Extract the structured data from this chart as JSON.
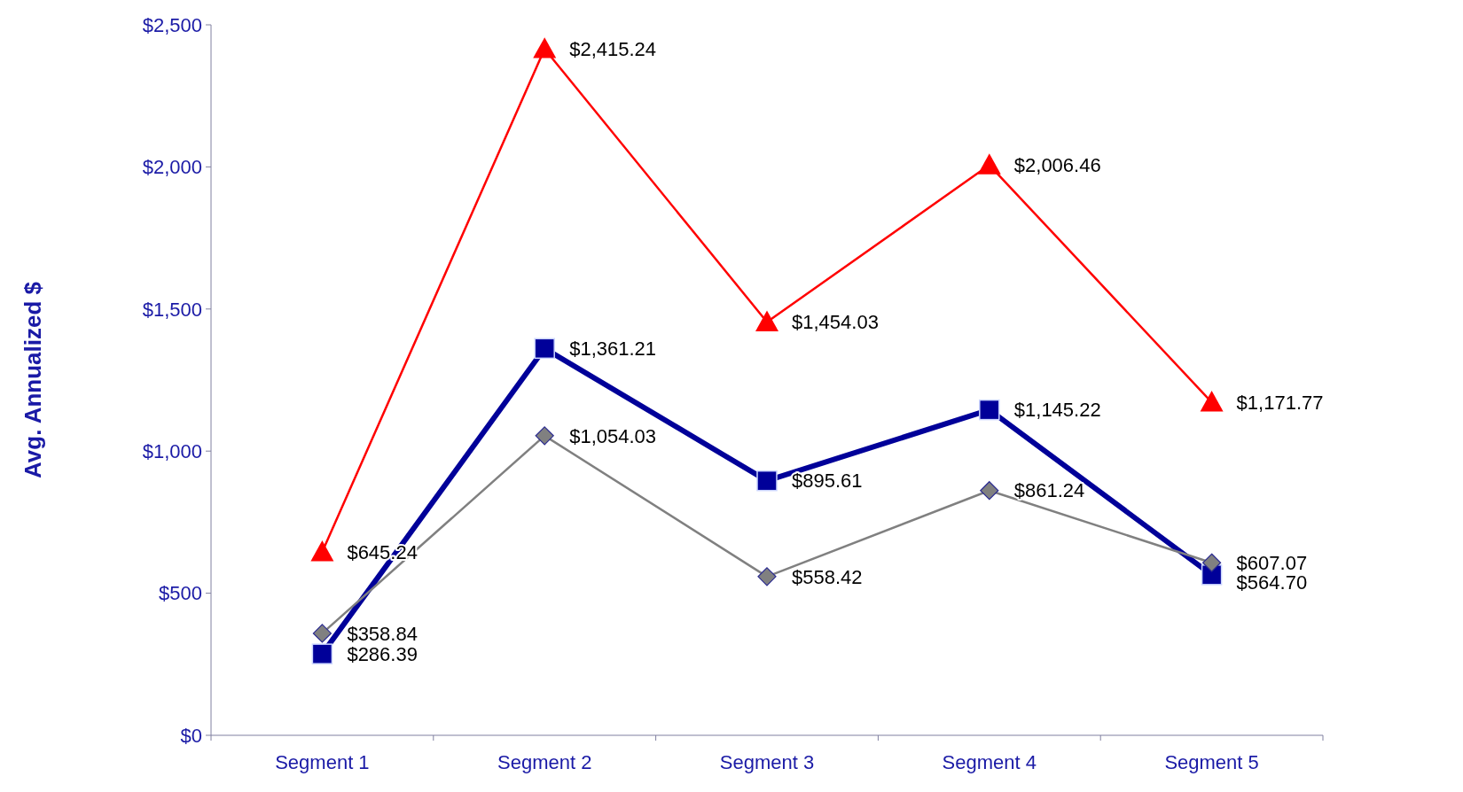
{
  "chart_data": {
    "type": "line",
    "ylabel": "Avg. Annualized $",
    "categories": [
      "Segment 1",
      "Segment 2",
      "Segment 3",
      "Segment 4",
      "Segment 5"
    ],
    "series": [
      {
        "color": "#ff0000",
        "marker": "triangle",
        "values": [
          645.24,
          2415.24,
          1454.03,
          2006.46,
          1171.77
        ],
        "value_labels": [
          "$645.24",
          "$2,415.24",
          "$1,454.03",
          "$2,006.46",
          "$1,171.77"
        ]
      },
      {
        "color": "#000099",
        "marker": "square",
        "values": [
          286.39,
          1361.21,
          895.61,
          1145.22,
          564.7
        ],
        "value_labels": [
          "$286.39",
          "$1,361.21",
          "$895.61",
          "$1,145.22",
          "$564.70"
        ]
      },
      {
        "color": "#808080",
        "marker": "diamond",
        "values": [
          358.84,
          1054.03,
          558.42,
          861.24,
          607.07
        ],
        "value_labels": [
          "$358.84",
          "$1,054.03",
          "$558.42",
          "$861.24",
          "$607.07"
        ]
      }
    ],
    "ylim": [
      0,
      2500
    ],
    "yticks": [
      {
        "value": 0,
        "label": "$0"
      },
      {
        "value": 500,
        "label": "$500"
      },
      {
        "value": 1000,
        "label": "$1,000"
      },
      {
        "value": 1500,
        "label": "$1,500"
      },
      {
        "value": 2000,
        "label": "$2,000"
      },
      {
        "value": 2500,
        "label": "$2,500"
      }
    ],
    "grid": false
  }
}
